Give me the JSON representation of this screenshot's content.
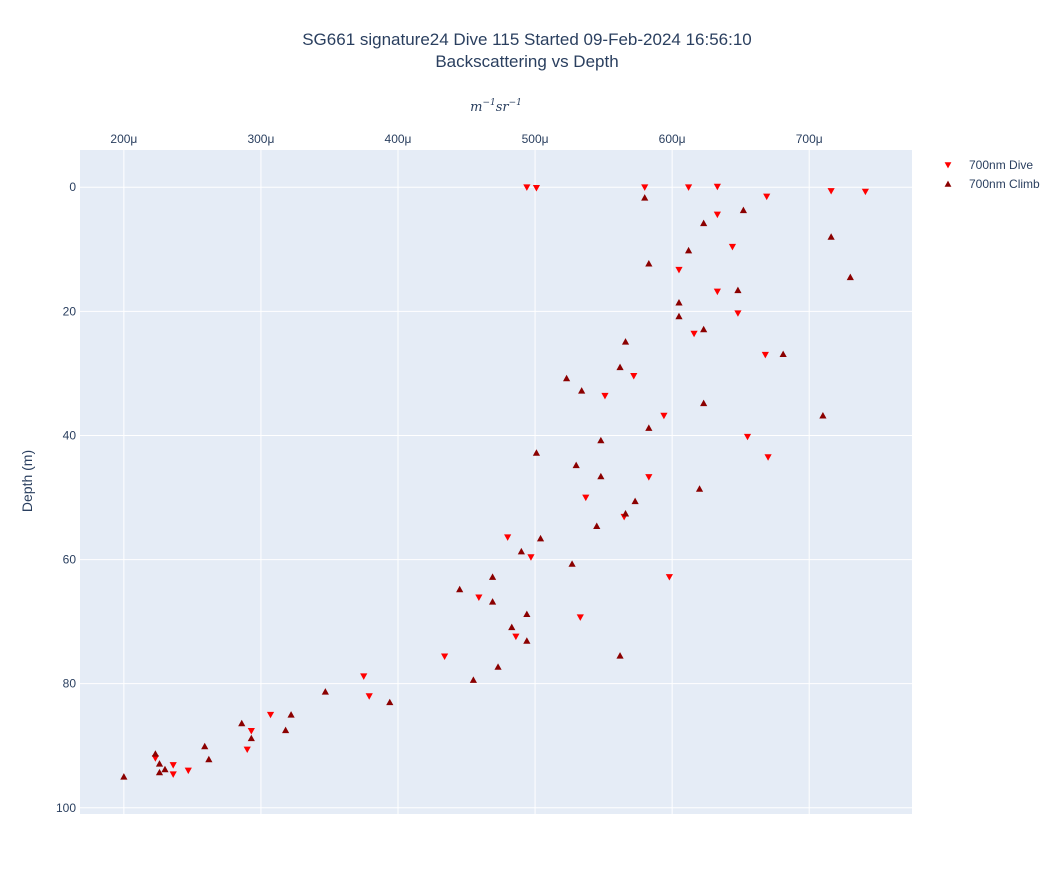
{
  "chart_data": {
    "type": "scatter",
    "title_line1": "SG661 signature24 Dive 115 Started 09-Feb-2024 16:56:10",
    "title_line2": "Backscattering vs Depth",
    "xlabel_base": "m",
    "xlabel_exp1": "−1",
    "xlabel_mid": "sr",
    "xlabel_exp2": "−1",
    "ylabel": "Depth (m)",
    "xlim": [
      0.000168,
      0.000775
    ],
    "ylim": [
      101,
      -6
    ],
    "x_axis_side": "top",
    "y_reversed": true,
    "grid": true,
    "legend_position": "top-right",
    "x_ticks": [
      {
        "value": 0.0002,
        "label": "200μ"
      },
      {
        "value": 0.0003,
        "label": "300μ"
      },
      {
        "value": 0.0004,
        "label": "400μ"
      },
      {
        "value": 0.0005,
        "label": "500μ"
      },
      {
        "value": 0.0006,
        "label": "600μ"
      },
      {
        "value": 0.0007,
        "label": "700μ"
      }
    ],
    "y_ticks": [
      {
        "value": 0,
        "label": "0"
      },
      {
        "value": 20,
        "label": "20"
      },
      {
        "value": 40,
        "label": "40"
      },
      {
        "value": 60,
        "label": "60"
      },
      {
        "value": 80,
        "label": "80"
      },
      {
        "value": 100,
        "label": "100"
      }
    ],
    "series": [
      {
        "name": "700nm Dive",
        "color": "#ff0000",
        "marker": "triangle-down",
        "points": [
          [
            0.000494,
            0.0
          ],
          [
            0.000501,
            0.1
          ],
          [
            0.00058,
            0.0
          ],
          [
            0.000612,
            0.0
          ],
          [
            0.000633,
            -0.1
          ],
          [
            0.000716,
            0.6
          ],
          [
            0.000741,
            0.7
          ],
          [
            0.000669,
            1.5
          ],
          [
            0.000633,
            4.4
          ],
          [
            0.000644,
            9.6
          ],
          [
            0.000605,
            13.3
          ],
          [
            0.000633,
            16.8
          ],
          [
            0.000648,
            20.3
          ],
          [
            0.000616,
            23.6
          ],
          [
            0.000668,
            27.0
          ],
          [
            0.000572,
            30.4
          ],
          [
            0.000551,
            33.6
          ],
          [
            0.000594,
            36.8
          ],
          [
            0.000655,
            40.2
          ],
          [
            0.00067,
            43.5
          ],
          [
            0.000583,
            46.7
          ],
          [
            0.000537,
            50.0
          ],
          [
            0.000565,
            53.1
          ],
          [
            0.00048,
            56.4
          ],
          [
            0.000497,
            59.6
          ],
          [
            0.000598,
            62.8
          ],
          [
            0.000459,
            66.1
          ],
          [
            0.000533,
            69.3
          ],
          [
            0.000486,
            72.4
          ],
          [
            0.000434,
            75.6
          ],
          [
            0.000375,
            78.8
          ],
          [
            0.000379,
            82.0
          ],
          [
            0.000307,
            85.0
          ],
          [
            0.000293,
            87.6
          ],
          [
            0.00029,
            90.6
          ],
          [
            0.000223,
            92.0
          ],
          [
            0.000236,
            93.1
          ],
          [
            0.000247,
            94.0
          ],
          [
            0.000236,
            94.6
          ]
        ]
      },
      {
        "name": "700nm Climb",
        "color": "#8b0000",
        "marker": "triangle-up",
        "points": [
          [
            0.0002,
            95.0
          ],
          [
            0.000226,
            94.3
          ],
          [
            0.00023,
            93.8
          ],
          [
            0.000226,
            92.9
          ],
          [
            0.000223,
            91.3
          ],
          [
            0.000262,
            92.2
          ],
          [
            0.000259,
            90.1
          ],
          [
            0.000293,
            88.8
          ],
          [
            0.000318,
            87.5
          ],
          [
            0.000286,
            86.4
          ],
          [
            0.000322,
            85.0
          ],
          [
            0.000394,
            83.0
          ],
          [
            0.000347,
            81.3
          ],
          [
            0.000455,
            79.4
          ],
          [
            0.000473,
            77.3
          ],
          [
            0.000562,
            75.5
          ],
          [
            0.000494,
            73.1
          ],
          [
            0.000483,
            70.9
          ],
          [
            0.000494,
            68.8
          ],
          [
            0.000469,
            66.8
          ],
          [
            0.000445,
            64.8
          ],
          [
            0.000469,
            62.8
          ],
          [
            0.000527,
            60.7
          ],
          [
            0.00049,
            58.7
          ],
          [
            0.000504,
            56.6
          ],
          [
            0.000545,
            54.6
          ],
          [
            0.000566,
            52.6
          ],
          [
            0.000573,
            50.6
          ],
          [
            0.00062,
            48.6
          ],
          [
            0.000548,
            46.6
          ],
          [
            0.00053,
            44.8
          ],
          [
            0.000501,
            42.8
          ],
          [
            0.000548,
            40.8
          ],
          [
            0.000583,
            38.8
          ],
          [
            0.00071,
            36.8
          ],
          [
            0.000623,
            34.8
          ],
          [
            0.000534,
            32.8
          ],
          [
            0.000523,
            30.8
          ],
          [
            0.000562,
            29.0
          ],
          [
            0.000681,
            26.9
          ],
          [
            0.000566,
            24.9
          ],
          [
            0.000623,
            22.9
          ],
          [
            0.000605,
            20.8
          ],
          [
            0.000605,
            18.6
          ],
          [
            0.000648,
            16.6
          ],
          [
            0.00073,
            14.5
          ],
          [
            0.000583,
            12.3
          ],
          [
            0.000612,
            10.2
          ],
          [
            0.000716,
            8.0
          ],
          [
            0.000623,
            5.8
          ],
          [
            0.000652,
            3.7
          ],
          [
            0.00058,
            1.7
          ]
        ]
      }
    ]
  }
}
